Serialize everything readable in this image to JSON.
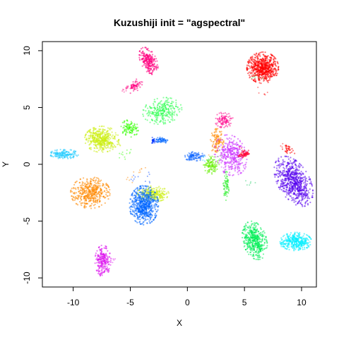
{
  "chart_data": {
    "type": "scatter",
    "title": "Kuzushiji init = \"agspectral\"",
    "xlabel": "X",
    "ylabel": "Y",
    "xlim": [
      -12.7,
      11.3
    ],
    "ylim": [
      -10.8,
      10.8
    ],
    "x_ticks": [
      -10,
      -5,
      0,
      5,
      10
    ],
    "y_ticks": [
      -10,
      -5,
      0,
      5,
      10
    ],
    "x_tick_labels": [
      "-10",
      "-5",
      "0",
      "5",
      "10"
    ],
    "y_tick_labels": [
      "-10",
      "-5",
      "0",
      "5",
      "10"
    ],
    "grid": false,
    "legend": "none",
    "clusters": [
      {
        "color": "#FF0000",
        "center": [
          6.6,
          8.5
        ],
        "spread": [
          0.6,
          0.6
        ],
        "rotation": -30,
        "points": 650
      },
      {
        "color": "#FF0080",
        "center": [
          -3.4,
          9.1
        ],
        "spread": [
          0.3,
          0.55
        ],
        "rotation": 25,
        "points": 260
      },
      {
        "color": "#FF0080",
        "center": [
          -4.6,
          6.9
        ],
        "spread": [
          0.4,
          0.2
        ],
        "rotation": 35,
        "points": 70
      },
      {
        "color": "#33FF55",
        "center": [
          -2.2,
          4.7
        ],
        "spread": [
          0.75,
          0.5
        ],
        "rotation": 10,
        "points": 280
      },
      {
        "color": "#FF1493",
        "center": [
          3.2,
          3.9
        ],
        "spread": [
          0.35,
          0.3
        ],
        "rotation": 0,
        "points": 110
      },
      {
        "color": "#33FF00",
        "center": [
          -5.1,
          3.1
        ],
        "spread": [
          0.35,
          0.35
        ],
        "rotation": 0,
        "points": 100
      },
      {
        "color": "#CCEE11",
        "center": [
          -7.5,
          2.2
        ],
        "spread": [
          0.65,
          0.5
        ],
        "rotation": 0,
        "points": 440
      },
      {
        "color": "#22CCFF",
        "center": [
          -10.8,
          0.9
        ],
        "spread": [
          0.55,
          0.18
        ],
        "rotation": 0,
        "points": 160
      },
      {
        "color": "#0066FF",
        "center": [
          -2.3,
          2.1
        ],
        "spread": [
          0.3,
          0.12
        ],
        "rotation": 0,
        "points": 60
      },
      {
        "color": "#0033FF",
        "center": [
          -3.0,
          2.1
        ],
        "spread": [
          0.1,
          0.12
        ],
        "rotation": 0,
        "points": 25
      },
      {
        "color": "#FF8800",
        "center": [
          2.6,
          2.1
        ],
        "spread": [
          0.25,
          0.45
        ],
        "rotation": 0,
        "points": 110
      },
      {
        "color": "#CC33FF",
        "center": [
          3.8,
          0.8
        ],
        "spread": [
          0.6,
          0.8
        ],
        "rotation": 20,
        "points": 360
      },
      {
        "color": "#FF0033",
        "center": [
          5.0,
          0.9
        ],
        "spread": [
          0.25,
          0.12
        ],
        "rotation": 20,
        "points": 60
      },
      {
        "color": "#1166FF",
        "center": [
          0.6,
          0.7
        ],
        "spread": [
          0.4,
          0.18
        ],
        "rotation": 0,
        "points": 100
      },
      {
        "color": "#66EE00",
        "center": [
          2.1,
          -0.1
        ],
        "spread": [
          0.3,
          0.35
        ],
        "rotation": 0,
        "points": 110
      },
      {
        "color": "#33EE33",
        "center": [
          3.4,
          -1.9
        ],
        "spread": [
          0.12,
          0.55
        ],
        "rotation": 0,
        "points": 70
      },
      {
        "color": "#5500EE",
        "center": [
          9.3,
          -1.5
        ],
        "spread": [
          0.6,
          1.05
        ],
        "rotation": 30,
        "points": 700
      },
      {
        "color": "#FF0000",
        "center": [
          8.8,
          1.3
        ],
        "spread": [
          0.3,
          0.15
        ],
        "rotation": -25,
        "points": 30
      },
      {
        "color": "#FF8800",
        "center": [
          -8.5,
          -2.5
        ],
        "spread": [
          0.75,
          0.6
        ],
        "rotation": 0,
        "points": 450
      },
      {
        "color": "#CCEE11",
        "center": [
          -3.0,
          -2.6
        ],
        "spread": [
          0.6,
          0.3
        ],
        "rotation": 0,
        "points": 250
      },
      {
        "color": "#0066FF",
        "center": [
          -3.8,
          -3.6
        ],
        "spread": [
          0.55,
          0.75
        ],
        "rotation": 0,
        "points": 620
      },
      {
        "color": "#00EE55",
        "center": [
          5.9,
          -6.7
        ],
        "spread": [
          0.45,
          0.75
        ],
        "rotation": 15,
        "points": 450
      },
      {
        "color": "#00EEFF",
        "center": [
          9.5,
          -6.8
        ],
        "spread": [
          0.6,
          0.35
        ],
        "rotation": 0,
        "points": 350
      },
      {
        "color": "#DD11EE",
        "center": [
          -7.4,
          -8.5
        ],
        "spread": [
          0.3,
          0.6
        ],
        "rotation": 0,
        "points": 230
      }
    ],
    "sparse_points": [
      {
        "x": -3.6,
        "y": -1.3,
        "color": "#0044FF"
      },
      {
        "x": -4.6,
        "y": -1.1,
        "color": "#0044FF"
      },
      {
        "x": -5.1,
        "y": -1.2,
        "color": "#FF8800"
      },
      {
        "x": -4.1,
        "y": -0.6,
        "color": "#FF8800"
      },
      {
        "x": -5.7,
        "y": 0.9,
        "color": "#33FF00"
      },
      {
        "x": -5.2,
        "y": 1.1,
        "color": "#33FF00"
      },
      {
        "x": -6.1,
        "y": 1.6,
        "color": "#CCEE11"
      },
      {
        "x": 1.6,
        "y": 0.6,
        "color": "#22CCFF"
      },
      {
        "x": 2.8,
        "y": 0.6,
        "color": "#44FF44"
      },
      {
        "x": 3.4,
        "y": -0.6,
        "color": "#CC33FF"
      },
      {
        "x": 4.9,
        "y": 1.2,
        "color": "#FF0000"
      },
      {
        "x": 5.5,
        "y": -1.6,
        "color": "#22CC66"
      },
      {
        "x": 4.8,
        "y": -0.3,
        "color": "#CC33FF"
      },
      {
        "x": 5.6,
        "y": 7.9,
        "color": "#FF0000"
      },
      {
        "x": 6.0,
        "y": 7.5,
        "color": "#33FF66"
      },
      {
        "x": 6.6,
        "y": 6.4,
        "color": "#FF0000"
      },
      {
        "x": 8.4,
        "y": 1.6,
        "color": "#FF0000"
      },
      {
        "x": 5.2,
        "y": -7.3,
        "color": "#00EE55"
      },
      {
        "x": 8.4,
        "y": -7.2,
        "color": "#00EEFF"
      },
      {
        "x": -6.5,
        "y": -8.3,
        "color": "#DD11EE"
      },
      {
        "x": -2.2,
        "y": 4.0,
        "color": "#33FF55"
      },
      {
        "x": -5.5,
        "y": 6.5,
        "color": "#FF0080"
      },
      {
        "x": 0.3,
        "y": 0.8,
        "color": "#0066FF"
      },
      {
        "x": 2.3,
        "y": 1.2,
        "color": "#FF8800"
      }
    ]
  }
}
